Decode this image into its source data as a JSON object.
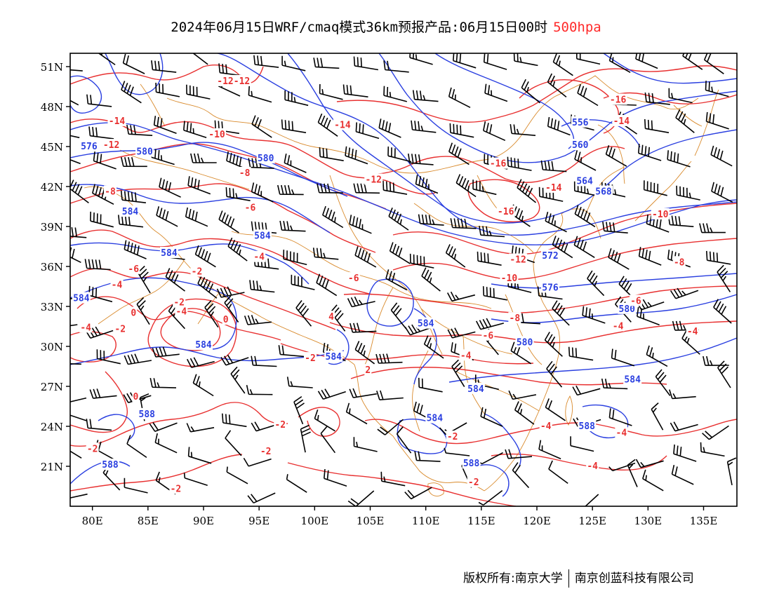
{
  "header": {
    "title": "2024年06月15日WRF/cmaq模式36km预报产品:06月15日00时",
    "level": "500hpa"
  },
  "axes": {
    "lat_labels": [
      "51N",
      "48N",
      "45N",
      "42N",
      "39N",
      "36N",
      "33N",
      "30N",
      "27N",
      "24N",
      "21N"
    ],
    "lat_values": [
      51,
      48,
      45,
      42,
      39,
      36,
      33,
      30,
      27,
      24,
      21
    ],
    "lon_labels": [
      "80E",
      "85E",
      "90E",
      "95E",
      "100E",
      "105E",
      "110E",
      "115E",
      "120E",
      "125E",
      "130E",
      "135E"
    ],
    "lon_values": [
      80,
      85,
      90,
      95,
      100,
      105,
      110,
      115,
      120,
      125,
      130,
      135
    ],
    "lon_range": [
      78,
      138
    ],
    "lat_range": [
      18,
      52
    ]
  },
  "colors": {
    "height_contour": "#2a3fe0",
    "temperature_contour": "#e83030",
    "border": "#d98a2c",
    "wind_barb": "#000000",
    "level_text": "#ff2a2a"
  },
  "height_labels": [
    {
      "text": "576",
      "lon": 79.7,
      "lat": 45.0
    },
    {
      "text": "580",
      "lon": 84.7,
      "lat": 44.6
    },
    {
      "text": "580",
      "lon": 95.6,
      "lat": 44.1
    },
    {
      "text": "584",
      "lon": 83.4,
      "lat": 40.1
    },
    {
      "text": "584",
      "lon": 95.3,
      "lat": 38.3
    },
    {
      "text": "584",
      "lon": 86.9,
      "lat": 37.0
    },
    {
      "text": "584",
      "lon": 79.0,
      "lat": 33.6
    },
    {
      "text": "584",
      "lon": 90.0,
      "lat": 30.1
    },
    {
      "text": "584",
      "lon": 110.0,
      "lat": 31.7
    },
    {
      "text": "584",
      "lon": 101.7,
      "lat": 29.2
    },
    {
      "text": "584",
      "lon": 114.5,
      "lat": 26.8
    },
    {
      "text": "584",
      "lon": 110.8,
      "lat": 24.6
    },
    {
      "text": "584",
      "lon": 128.6,
      "lat": 27.5
    },
    {
      "text": "580",
      "lon": 118.9,
      "lat": 30.3
    },
    {
      "text": "576",
      "lon": 121.2,
      "lat": 34.4
    },
    {
      "text": "572",
      "lon": 121.2,
      "lat": 36.8
    },
    {
      "text": "568",
      "lon": 126.0,
      "lat": 41.6
    },
    {
      "text": "564",
      "lon": 124.3,
      "lat": 42.4
    },
    {
      "text": "560",
      "lon": 123.9,
      "lat": 45.1
    },
    {
      "text": "556",
      "lon": 123.9,
      "lat": 46.8
    },
    {
      "text": "580",
      "lon": 128.1,
      "lat": 32.8
    },
    {
      "text": "588",
      "lon": 84.9,
      "lat": 24.9
    },
    {
      "text": "588",
      "lon": 81.6,
      "lat": 21.1
    },
    {
      "text": "588",
      "lon": 114.1,
      "lat": 21.2
    },
    {
      "text": "588",
      "lon": 124.5,
      "lat": 24.0
    }
  ],
  "temperature_labels": [
    {
      "text": "-12-12",
      "lon": 92.7,
      "lat": 49.9
    },
    {
      "text": "-14",
      "lon": 82.2,
      "lat": 46.9
    },
    {
      "text": "-12",
      "lon": 81.7,
      "lat": 45.1
    },
    {
      "text": "-10",
      "lon": 91.2,
      "lat": 45.9
    },
    {
      "text": "-8",
      "lon": 93.7,
      "lat": 43.0
    },
    {
      "text": "-8",
      "lon": 81.6,
      "lat": 41.6
    },
    {
      "text": "-6",
      "lon": 94.2,
      "lat": 40.4
    },
    {
      "text": "-4",
      "lon": 95.0,
      "lat": 36.7
    },
    {
      "text": "-6",
      "lon": 83.7,
      "lat": 35.8
    },
    {
      "text": "-4",
      "lon": 82.2,
      "lat": 34.6
    },
    {
      "text": "-2",
      "lon": 89.4,
      "lat": 35.6
    },
    {
      "text": "-2",
      "lon": 87.8,
      "lat": 33.3
    },
    {
      "text": "-4",
      "lon": 88.0,
      "lat": 32.6
    },
    {
      "text": "0",
      "lon": 83.7,
      "lat": 32.5
    },
    {
      "text": "0",
      "lon": 92.0,
      "lat": 32.0
    },
    {
      "text": "-2",
      "lon": 82.5,
      "lat": 31.3
    },
    {
      "text": "-4",
      "lon": 79.4,
      "lat": 31.4
    },
    {
      "text": "0",
      "lon": 83.9,
      "lat": 26.2
    },
    {
      "text": "-14",
      "lon": 102.5,
      "lat": 46.6
    },
    {
      "text": "-12",
      "lon": 105.3,
      "lat": 42.5
    },
    {
      "text": "-16",
      "lon": 116.5,
      "lat": 43.7
    },
    {
      "text": "-16",
      "lon": 117.2,
      "lat": 40.1
    },
    {
      "text": "-14",
      "lon": 121.5,
      "lat": 41.9
    },
    {
      "text": "-16",
      "lon": 127.3,
      "lat": 48.5
    },
    {
      "text": "-14",
      "lon": 127.6,
      "lat": 46.9
    },
    {
      "text": "-12",
      "lon": 118.3,
      "lat": 36.5
    },
    {
      "text": "-10",
      "lon": 117.5,
      "lat": 35.1
    },
    {
      "text": "-10",
      "lon": 131.1,
      "lat": 39.9
    },
    {
      "text": "-8",
      "lon": 132.8,
      "lat": 36.3
    },
    {
      "text": "-6",
      "lon": 128.9,
      "lat": 33.4
    },
    {
      "text": "-6",
      "lon": 103.5,
      "lat": 35.1
    },
    {
      "text": "-8",
      "lon": 118.0,
      "lat": 32.1
    },
    {
      "text": "-6",
      "lon": 115.6,
      "lat": 30.8
    },
    {
      "text": "-4",
      "lon": 113.6,
      "lat": 29.3
    },
    {
      "text": "-4",
      "lon": 127.3,
      "lat": 31.5
    },
    {
      "text": "-4",
      "lon": 134.0,
      "lat": 31.1
    },
    {
      "text": "4",
      "lon": 101.5,
      "lat": 32.2
    },
    {
      "text": "-2",
      "lon": 99.6,
      "lat": 29.1
    },
    {
      "text": "2",
      "lon": 104.8,
      "lat": 28.2
    },
    {
      "text": "-2",
      "lon": 96.9,
      "lat": 24.1
    },
    {
      "text": "-2",
      "lon": 95.6,
      "lat": 22.1
    },
    {
      "text": "-2",
      "lon": 112.4,
      "lat": 23.2
    },
    {
      "text": "-2",
      "lon": 80.0,
      "lat": 22.3
    },
    {
      "text": "-2",
      "lon": 87.5,
      "lat": 19.3
    },
    {
      "text": "-4",
      "lon": 120.8,
      "lat": 24.0
    },
    {
      "text": "-4",
      "lon": 127.6,
      "lat": 23.5
    },
    {
      "text": "-4",
      "lon": 125.0,
      "lat": 21.0
    },
    {
      "text": "-2",
      "lon": 114.3,
      "lat": 19.8
    }
  ],
  "footer": {
    "left": "版权所有:南京大学",
    "right": "南京创蓝科技有限公司"
  }
}
